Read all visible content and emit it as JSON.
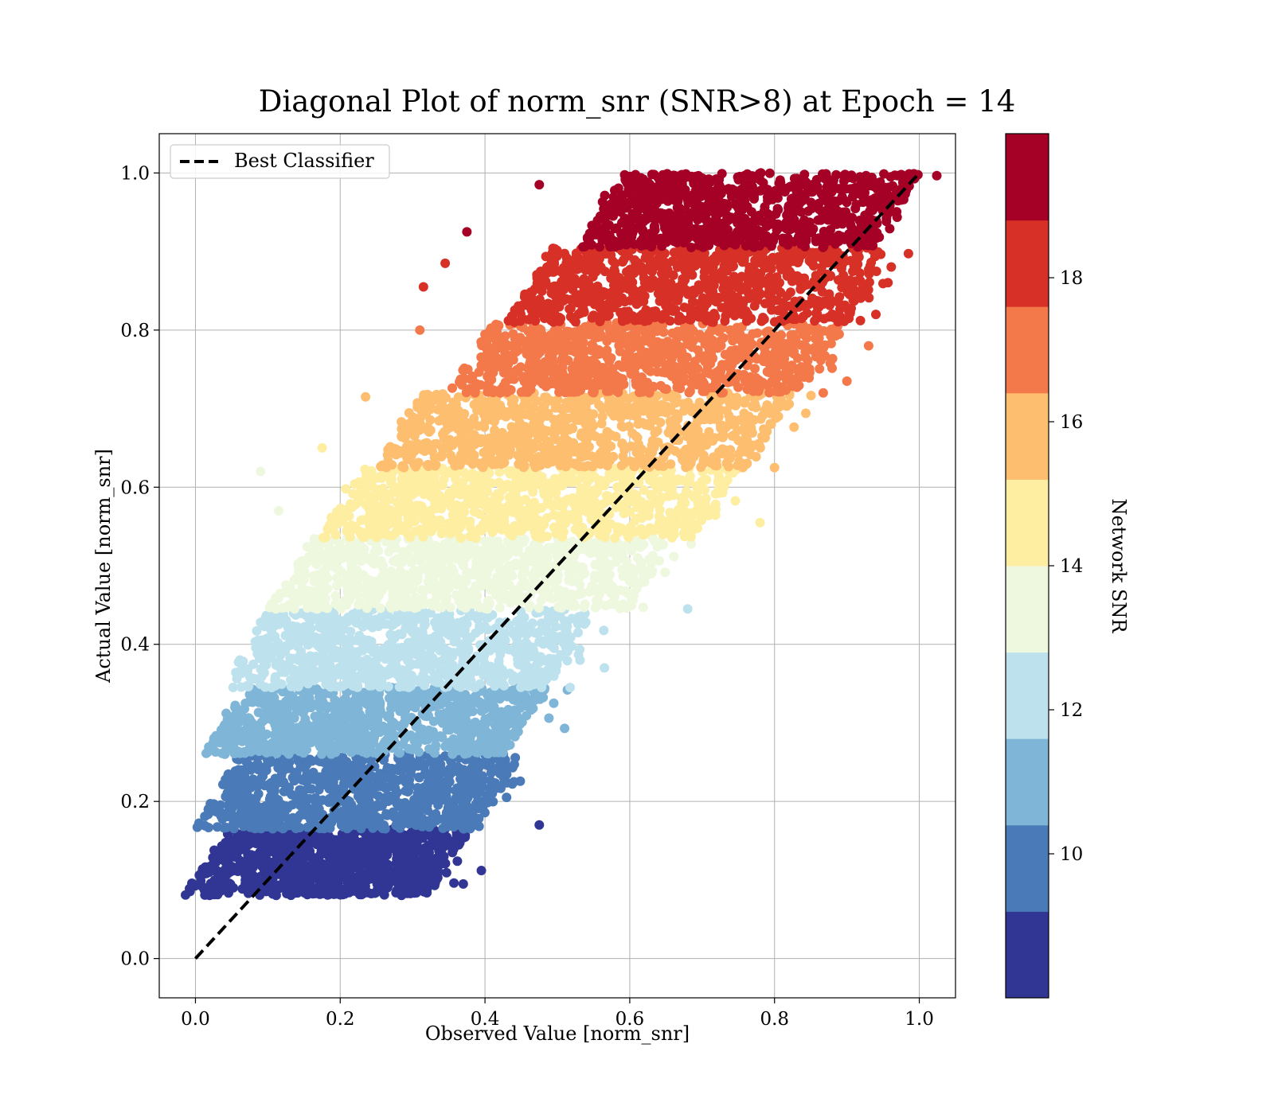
{
  "chart_data": {
    "type": "scatter",
    "title": "Diagonal Plot of norm_snr (SNR>8) at Epoch = 14",
    "xlabel": "Observed Value [norm_snr]",
    "ylabel": "Actual Value [norm_snr]",
    "xlim": [
      -0.05,
      1.05
    ],
    "ylim": [
      -0.05,
      1.05
    ],
    "xticks": [
      "0.0",
      "0.2",
      "0.4",
      "0.6",
      "0.8",
      "1.0"
    ],
    "yticks": [
      "0.0",
      "0.2",
      "0.4",
      "0.6",
      "0.8",
      "1.0"
    ],
    "grid": true,
    "legend": {
      "placement": "upper-left",
      "entries": [
        {
          "label": "Best Classifier",
          "style": "dashed",
          "color": "#000000"
        }
      ]
    },
    "reference_line": {
      "name": "Best Classifier",
      "x": [
        0,
        1
      ],
      "y": [
        0,
        1
      ]
    },
    "colorbar": {
      "label": "Network SNR",
      "range": [
        8,
        20
      ],
      "ticks": [
        "10",
        "12",
        "14",
        "16",
        "18"
      ],
      "levels": [
        {
          "from": 8,
          "to": 9.2,
          "color": "#313695"
        },
        {
          "from": 9.2,
          "to": 10.4,
          "color": "#4a7ab7"
        },
        {
          "from": 10.4,
          "to": 11.6,
          "color": "#7fb5d6"
        },
        {
          "from": 11.6,
          "to": 12.8,
          "color": "#bde2ee"
        },
        {
          "from": 12.8,
          "to": 14.0,
          "color": "#eef8df"
        },
        {
          "from": 14.0,
          "to": 15.2,
          "color": "#feeea2"
        },
        {
          "from": 15.2,
          "to": 16.4,
          "color": "#fdbe70"
        },
        {
          "from": 16.4,
          "to": 17.6,
          "color": "#f4794a"
        },
        {
          "from": 17.6,
          "to": 18.8,
          "color": "#d73027"
        },
        {
          "from": 18.8,
          "to": 20,
          "color": "#a50026"
        }
      ]
    },
    "bands": [
      {
        "snr_level": 1,
        "y_range": [
          0.08,
          0.165
        ],
        "x_range": [
          0.015,
          0.35
        ],
        "color": "#313695"
      },
      {
        "snr_level": 2,
        "y_range": [
          0.165,
          0.26
        ],
        "x_range": [
          0.03,
          0.42
        ],
        "color": "#4a7ab7"
      },
      {
        "snr_level": 3,
        "y_range": [
          0.26,
          0.345
        ],
        "x_range": [
          0.04,
          0.46
        ],
        "color": "#7fb5d6"
      },
      {
        "snr_level": 4,
        "y_range": [
          0.345,
          0.445
        ],
        "x_range": [
          0.07,
          0.52
        ],
        "color": "#bde2ee"
      },
      {
        "snr_level": 5,
        "y_range": [
          0.445,
          0.535
        ],
        "x_range": [
          0.13,
          0.63
        ],
        "color": "#eef8df"
      },
      {
        "snr_level": 6,
        "y_range": [
          0.535,
          0.625
        ],
        "x_range": [
          0.2,
          0.72
        ],
        "color": "#feeea2"
      },
      {
        "snr_level": 7,
        "y_range": [
          0.625,
          0.72
        ],
        "x_range": [
          0.28,
          0.8
        ],
        "color": "#fdbe70"
      },
      {
        "snr_level": 8,
        "y_range": [
          0.72,
          0.81
        ],
        "x_range": [
          0.38,
          0.87
        ],
        "color": "#f4794a"
      },
      {
        "snr_level": 9,
        "y_range": [
          0.81,
          0.905
        ],
        "x_range": [
          0.46,
          0.93
        ],
        "color": "#d73027"
      },
      {
        "snr_level": 10,
        "y_range": [
          0.905,
          1.0
        ],
        "x_range": [
          0.56,
          0.97
        ],
        "color": "#a50026"
      }
    ],
    "outliers": [
      {
        "x": 0.475,
        "y": 0.17,
        "band": 1
      },
      {
        "x": 0.37,
        "y": 0.095,
        "band": 1
      },
      {
        "x": 0.395,
        "y": 0.112,
        "band": 1
      },
      {
        "x": 0.355,
        "y": 0.135,
        "band": 1
      },
      {
        "x": 0.385,
        "y": 0.19,
        "band": 2
      },
      {
        "x": 0.44,
        "y": 0.225,
        "band": 2
      },
      {
        "x": 0.51,
        "y": 0.293,
        "band": 3
      },
      {
        "x": 0.495,
        "y": 0.325,
        "band": 3
      },
      {
        "x": 0.68,
        "y": 0.445,
        "band": 4
      },
      {
        "x": 0.565,
        "y": 0.37,
        "band": 4
      },
      {
        "x": 0.09,
        "y": 0.62,
        "band": 5
      },
      {
        "x": 0.115,
        "y": 0.57,
        "band": 5
      },
      {
        "x": 0.63,
        "y": 0.49,
        "band": 5
      },
      {
        "x": 0.175,
        "y": 0.65,
        "band": 6
      },
      {
        "x": 0.78,
        "y": 0.555,
        "band": 6
      },
      {
        "x": 0.235,
        "y": 0.715,
        "band": 7
      },
      {
        "x": 0.8,
        "y": 0.625,
        "band": 7
      },
      {
        "x": 0.31,
        "y": 0.8,
        "band": 8
      },
      {
        "x": 0.9,
        "y": 0.735,
        "band": 8
      },
      {
        "x": 0.93,
        "y": 0.78,
        "band": 8
      },
      {
        "x": 0.315,
        "y": 0.855,
        "band": 9
      },
      {
        "x": 0.345,
        "y": 0.885,
        "band": 9
      },
      {
        "x": 0.94,
        "y": 0.82,
        "band": 9
      },
      {
        "x": 0.375,
        "y": 0.925,
        "band": 10
      },
      {
        "x": 0.475,
        "y": 0.985,
        "band": 10
      }
    ]
  }
}
